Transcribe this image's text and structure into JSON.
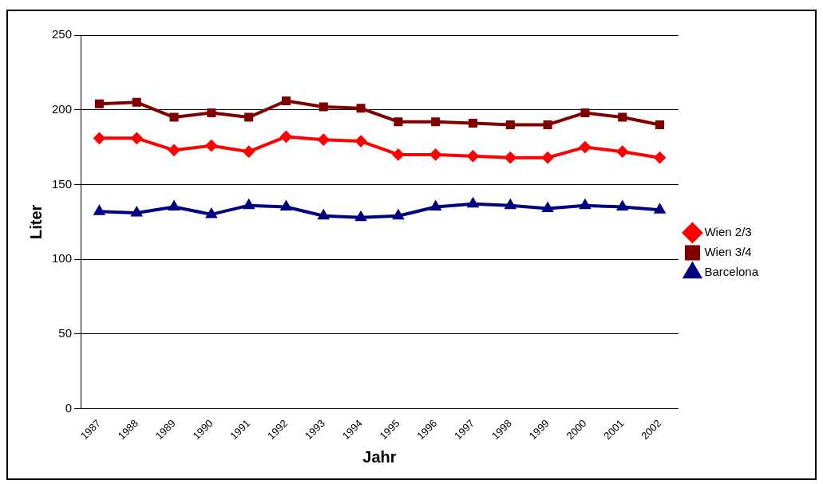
{
  "chart_data": {
    "type": "line",
    "xlabel": "Jahr",
    "ylabel": "Liter",
    "categories": [
      "1987",
      "1988",
      "1989",
      "1990",
      "1991",
      "1992",
      "1993",
      "1994",
      "1995",
      "1996",
      "1997",
      "1998",
      "1999",
      "2000",
      "2001",
      "2002"
    ],
    "series": [
      {
        "name": "Wien 2/3",
        "color": "#ff0000",
        "marker": "diamond",
        "values": [
          181,
          181,
          173,
          176,
          172,
          182,
          180,
          179,
          170,
          170,
          169,
          168,
          168,
          175,
          172,
          168
        ]
      },
      {
        "name": "Wien 3/4",
        "color": "#800000",
        "marker": "square",
        "values": [
          204,
          205,
          195,
          198,
          195,
          206,
          202,
          201,
          192,
          192,
          191,
          190,
          190,
          198,
          195,
          190
        ]
      },
      {
        "name": "Barcelona",
        "color": "#000080",
        "marker": "triangle",
        "values": [
          132,
          131,
          135,
          130,
          136,
          135,
          129,
          128,
          129,
          135,
          137,
          136,
          134,
          136,
          135,
          133
        ]
      }
    ],
    "ylim": [
      0,
      250
    ],
    "yticks": [
      0,
      50,
      100,
      150,
      200,
      250
    ],
    "grid": "y",
    "legend": "right"
  }
}
